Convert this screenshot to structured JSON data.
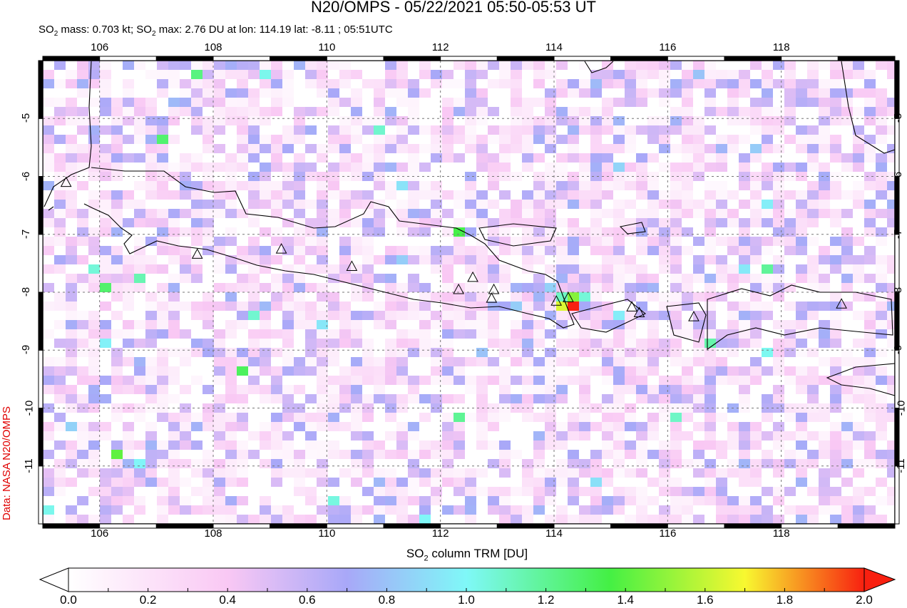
{
  "title": "N20/OMPS - 05/22/2021 05:50-05:53 UT",
  "subtitle": {
    "so2_mass_label": "SO",
    "mass_rest": " mass: 0.703 kt; SO",
    "max_rest": " max: 2.76 DU at lon: 114.19 lat: -8.11 ; 05:51UTC"
  },
  "map": {
    "lon_range": [
      105,
      120
    ],
    "lat_range": [
      -12,
      -4
    ],
    "lon_ticks": [
      "106",
      "108",
      "110",
      "112",
      "114",
      "116",
      "118"
    ],
    "lat_ticks": [
      "-5",
      "-6",
      "-7",
      "-8",
      "-9",
      "-10",
      "-11"
    ],
    "grid": "dashed",
    "hotspot": {
      "lon": 114.19,
      "lat": -8.11,
      "max_du": 2.76
    },
    "volcanoes": [
      [
        105.41,
        -6.1
      ],
      [
        107.72,
        -7.34
      ],
      [
        109.2,
        -7.25
      ],
      [
        110.44,
        -7.55
      ],
      [
        112.32,
        -7.95
      ],
      [
        112.57,
        -7.74
      ],
      [
        112.94,
        -7.95
      ],
      [
        112.9,
        -8.1
      ],
      [
        114.04,
        -8.15
      ],
      [
        114.25,
        -8.09
      ],
      [
        115.37,
        -8.25
      ],
      [
        115.5,
        -8.35
      ],
      [
        116.46,
        -8.42
      ],
      [
        119.06,
        -8.2
      ]
    ]
  },
  "colorbar": {
    "label_pre": "SO",
    "label_sub": "2",
    "label_post": " column TRM [DU]",
    "ticks": [
      "0.0",
      "0.2",
      "0.4",
      "0.6",
      "0.8",
      "1.0",
      "1.2",
      "1.4",
      "1.6",
      "1.8",
      "2.0"
    ],
    "colors": [
      "#ffffff",
      "#f9c8f4",
      "#a8a8f8",
      "#7ff8f8",
      "#44f044",
      "#f8f830",
      "#f82010"
    ]
  },
  "credit": "Data: NASA N20/OMPS"
}
